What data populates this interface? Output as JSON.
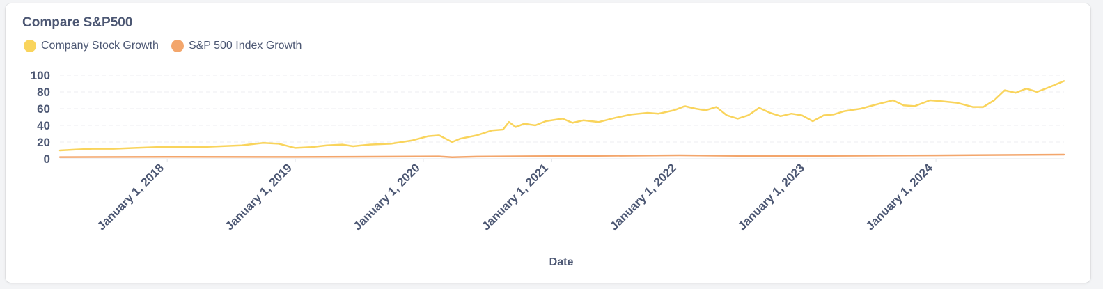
{
  "card": {
    "title": "Compare S&P500"
  },
  "chart_data": {
    "type": "line",
    "title": "Compare S&P500",
    "xlabel": "Date",
    "ylabel": "",
    "ylim": [
      0,
      100
    ],
    "y_ticks": [
      0,
      20,
      40,
      60,
      80,
      100
    ],
    "x_range": [
      "2017-03-01",
      "2024-12-31"
    ],
    "x_ticks": [
      {
        "date": "2018-01-01",
        "label": "January 1, 2018"
      },
      {
        "date": "2019-01-01",
        "label": "January 1, 2019"
      },
      {
        "date": "2020-01-01",
        "label": "January 1, 2020"
      },
      {
        "date": "2021-01-01",
        "label": "January 1, 2021"
      },
      {
        "date": "2022-01-01",
        "label": "January 1, 2022"
      },
      {
        "date": "2023-01-01",
        "label": "January 1, 2023"
      },
      {
        "date": "2024-01-01",
        "label": "January 1, 2024"
      }
    ],
    "grid": true,
    "legend_position": "top-left",
    "series": [
      {
        "name": "Company Stock Growth",
        "color": "#f9d45c",
        "points": [
          [
            "2017-03-01",
            10
          ],
          [
            "2017-04-15",
            11
          ],
          [
            "2017-06-01",
            12
          ],
          [
            "2017-08-01",
            12
          ],
          [
            "2017-10-01",
            13
          ],
          [
            "2017-12-01",
            14
          ],
          [
            "2018-02-01",
            14
          ],
          [
            "2018-04-01",
            14
          ],
          [
            "2018-06-01",
            15
          ],
          [
            "2018-08-01",
            16
          ],
          [
            "2018-10-01",
            19
          ],
          [
            "2018-11-15",
            18
          ],
          [
            "2019-01-01",
            13
          ],
          [
            "2019-02-15",
            14
          ],
          [
            "2019-04-01",
            16
          ],
          [
            "2019-05-15",
            17
          ],
          [
            "2019-06-15",
            15
          ],
          [
            "2019-08-01",
            17
          ],
          [
            "2019-10-01",
            18
          ],
          [
            "2019-12-01",
            22
          ],
          [
            "2020-01-15",
            27
          ],
          [
            "2020-02-15",
            28
          ],
          [
            "2020-03-23",
            20
          ],
          [
            "2020-04-15",
            24
          ],
          [
            "2020-06-01",
            28
          ],
          [
            "2020-07-15",
            34
          ],
          [
            "2020-08-15",
            35
          ],
          [
            "2020-09-01",
            44
          ],
          [
            "2020-09-20",
            38
          ],
          [
            "2020-10-15",
            42
          ],
          [
            "2020-11-15",
            40
          ],
          [
            "2020-12-15",
            45
          ],
          [
            "2021-02-01",
            48
          ],
          [
            "2021-03-01",
            43
          ],
          [
            "2021-04-01",
            46
          ],
          [
            "2021-05-15",
            44
          ],
          [
            "2021-07-01",
            49
          ],
          [
            "2021-08-15",
            53
          ],
          [
            "2021-10-01",
            55
          ],
          [
            "2021-11-01",
            54
          ],
          [
            "2021-12-15",
            58
          ],
          [
            "2022-01-15",
            63
          ],
          [
            "2022-02-15",
            60
          ],
          [
            "2022-03-15",
            58
          ],
          [
            "2022-04-15",
            62
          ],
          [
            "2022-05-15",
            52
          ],
          [
            "2022-06-15",
            48
          ],
          [
            "2022-07-15",
            52
          ],
          [
            "2022-08-15",
            61
          ],
          [
            "2022-09-15",
            55
          ],
          [
            "2022-10-15",
            51
          ],
          [
            "2022-11-15",
            54
          ],
          [
            "2022-12-15",
            52
          ],
          [
            "2023-01-15",
            45
          ],
          [
            "2023-02-15",
            52
          ],
          [
            "2023-03-15",
            53
          ],
          [
            "2023-04-15",
            57
          ],
          [
            "2023-06-01",
            60
          ],
          [
            "2023-07-15",
            65
          ],
          [
            "2023-09-01",
            70
          ],
          [
            "2023-10-01",
            64
          ],
          [
            "2023-11-01",
            63
          ],
          [
            "2023-12-15",
            70
          ],
          [
            "2024-01-15",
            69
          ],
          [
            "2024-03-01",
            67
          ],
          [
            "2024-04-15",
            62
          ],
          [
            "2024-05-15",
            62
          ],
          [
            "2024-06-15",
            70
          ],
          [
            "2024-07-15",
            82
          ],
          [
            "2024-08-15",
            79
          ],
          [
            "2024-09-15",
            84
          ],
          [
            "2024-10-15",
            80
          ],
          [
            "2024-11-15",
            85
          ],
          [
            "2024-12-31",
            93
          ]
        ]
      },
      {
        "name": "S&P 500 Index Growth",
        "color": "#f3a66c",
        "points": [
          [
            "2017-03-01",
            2
          ],
          [
            "2018-01-01",
            2.3
          ],
          [
            "2019-01-01",
            2.2
          ],
          [
            "2020-02-15",
            2.8
          ],
          [
            "2020-03-23",
            1.8
          ],
          [
            "2020-06-01",
            2.6
          ],
          [
            "2021-01-01",
            3.2
          ],
          [
            "2021-12-31",
            4.2
          ],
          [
            "2022-06-15",
            3.5
          ],
          [
            "2023-01-01",
            3.4
          ],
          [
            "2024-01-01",
            4.1
          ],
          [
            "2024-12-31",
            5
          ]
        ]
      }
    ]
  }
}
